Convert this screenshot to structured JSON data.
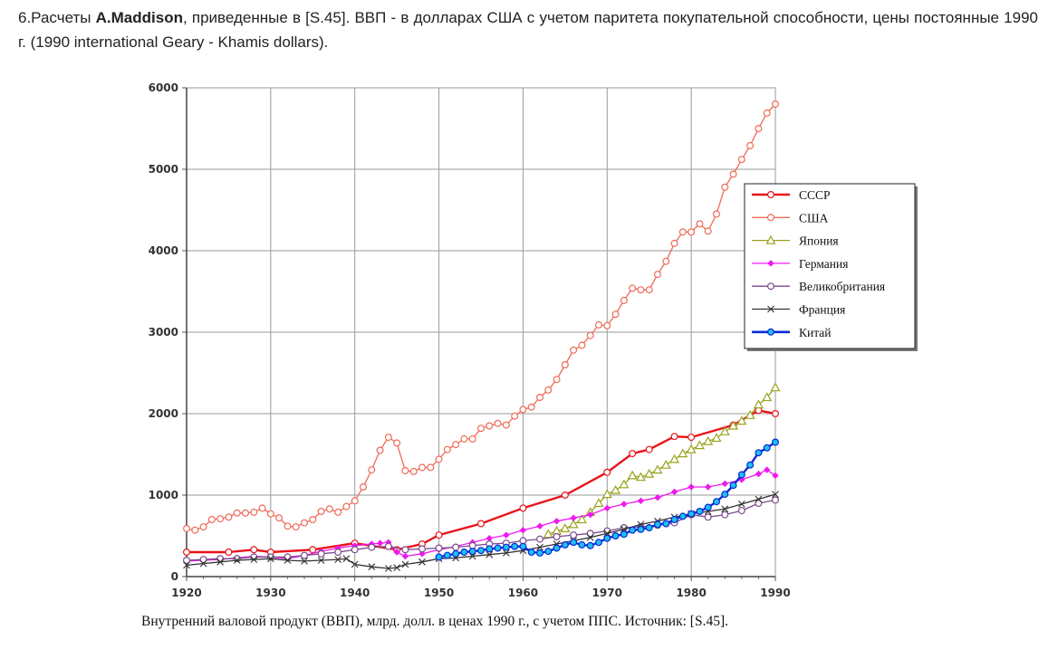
{
  "intro": {
    "prefix": "6.Расчеты ",
    "author": "A.Maddison",
    "rest": ", приведенные в [S.45]. ВВП - в долларах США с учетом паритета покупательной способности, цены постоянные 1990 г. (1990 international Geary - Khamis dollars)."
  },
  "caption": "Внутренний валовой продукт (ВВП), млрд. долл. в ценах 1990 г., с учетом ППС. Источник: [S.45].",
  "chart_data": {
    "type": "line",
    "xlim": [
      1920,
      1990
    ],
    "ylim": [
      0,
      6000
    ],
    "x_ticks": [
      "1920",
      "1930",
      "1940",
      "1950",
      "1960",
      "1970",
      "1980",
      "1990"
    ],
    "y_ticks": [
      "0",
      "1000",
      "2000",
      "3000",
      "4000",
      "5000",
      "6000"
    ],
    "grid": true,
    "legend_position": "right",
    "series": [
      {
        "name": "СССР",
        "color": "#e8141b",
        "marker": "circle",
        "x": [
          1920,
          1925,
          1928,
          1930,
          1935,
          1940,
          1945,
          1948,
          1950,
          1955,
          1960,
          1965,
          1970,
          1973,
          1975,
          1978,
          1980,
          1985,
          1988,
          1990
        ],
        "y": [
          300,
          300,
          330,
          300,
          330,
          410,
          330,
          400,
          510,
          650,
          840,
          1000,
          1280,
          1510,
          1560,
          1720,
          1710,
          1860,
          2040,
          2000
        ]
      },
      {
        "name": "США",
        "color": "#ef6b57",
        "marker": "circle",
        "x": [
          1920,
          1921,
          1922,
          1923,
          1924,
          1925,
          1926,
          1927,
          1928,
          1929,
          1930,
          1931,
          1932,
          1933,
          1934,
          1935,
          1936,
          1937,
          1938,
          1939,
          1940,
          1941,
          1942,
          1943,
          1944,
          1945,
          1946,
          1947,
          1948,
          1949,
          1950,
          1951,
          1952,
          1953,
          1954,
          1955,
          1956,
          1957,
          1958,
          1959,
          1960,
          1961,
          1962,
          1963,
          1964,
          1965,
          1966,
          1967,
          1968,
          1969,
          1970,
          1971,
          1972,
          1973,
          1974,
          1975,
          1976,
          1977,
          1978,
          1979,
          1980,
          1981,
          1982,
          1983,
          1984,
          1985,
          1986,
          1987,
          1988,
          1989,
          1990
        ],
        "y": [
          590,
          570,
          610,
          700,
          710,
          730,
          780,
          780,
          790,
          840,
          770,
          720,
          620,
          610,
          660,
          700,
          800,
          830,
          790,
          860,
          930,
          1100,
          1310,
          1550,
          1710,
          1640,
          1300,
          1290,
          1340,
          1340,
          1440,
          1560,
          1620,
          1690,
          1690,
          1820,
          1850,
          1880,
          1860,
          1970,
          2050,
          2080,
          2200,
          2290,
          2420,
          2600,
          2780,
          2840,
          2960,
          3090,
          3080,
          3220,
          3390,
          3540,
          3520,
          3520,
          3710,
          3870,
          4090,
          4230,
          4230,
          4330,
          4240,
          4450,
          4780,
          4940,
          5120,
          5290,
          5500,
          5690,
          5800
        ]
      },
      {
        "name": "Япония",
        "color": "#9aa31f",
        "marker": "triangle",
        "x": [
          1963,
          1964,
          1965,
          1966,
          1967,
          1968,
          1969,
          1970,
          1971,
          1972,
          1973,
          1974,
          1975,
          1976,
          1977,
          1978,
          1979,
          1980,
          1981,
          1982,
          1983,
          1984,
          1985,
          1986,
          1987,
          1988,
          1989,
          1990
        ],
        "y": [
          520,
          560,
          590,
          640,
          700,
          790,
          900,
          1010,
          1060,
          1130,
          1240,
          1220,
          1260,
          1310,
          1370,
          1440,
          1510,
          1560,
          1610,
          1660,
          1700,
          1780,
          1850,
          1910,
          1980,
          2110,
          2200,
          2320
        ]
      },
      {
        "name": "Германия",
        "color": "#f018f0",
        "marker": "diamond",
        "x": [
          1920,
          1922,
          1924,
          1926,
          1928,
          1930,
          1932,
          1934,
          1936,
          1938,
          1940,
          1942,
          1943,
          1944,
          1945,
          1946,
          1948,
          1950,
          1952,
          1954,
          1956,
          1958,
          1960,
          1962,
          1964,
          1966,
          1968,
          1970,
          1972,
          1974,
          1976,
          1978,
          1980,
          1982,
          1984,
          1986,
          1988,
          1989,
          1990
        ],
        "y": [
          190,
          200,
          210,
          230,
          250,
          240,
          220,
          260,
          310,
          350,
          380,
          400,
          410,
          420,
          300,
          250,
          280,
          330,
          370,
          420,
          470,
          510,
          570,
          620,
          680,
          720,
          760,
          840,
          890,
          930,
          970,
          1040,
          1100,
          1100,
          1140,
          1190,
          1260,
          1310,
          1240
        ]
      },
      {
        "name": "Великобритания",
        "color": "#7a4a8c",
        "marker": "circle",
        "x": [
          1920,
          1922,
          1924,
          1926,
          1928,
          1930,
          1932,
          1934,
          1936,
          1938,
          1940,
          1942,
          1944,
          1946,
          1948,
          1950,
          1952,
          1954,
          1956,
          1958,
          1960,
          1962,
          1964,
          1966,
          1968,
          1970,
          1972,
          1974,
          1976,
          1978,
          1980,
          1982,
          1984,
          1986,
          1988,
          1990
        ],
        "y": [
          200,
          210,
          220,
          220,
          240,
          240,
          240,
          260,
          280,
          300,
          330,
          360,
          370,
          330,
          340,
          350,
          360,
          380,
          400,
          410,
          440,
          460,
          490,
          510,
          530,
          560,
          600,
          610,
          630,
          660,
          760,
          730,
          760,
          810,
          900,
          940
        ]
      },
      {
        "name": "Франция",
        "color": "#333333",
        "marker": "cross",
        "x": [
          1920,
          1922,
          1924,
          1926,
          1928,
          1930,
          1932,
          1934,
          1936,
          1938,
          1939,
          1940,
          1942,
          1944,
          1945,
          1946,
          1948,
          1950,
          1952,
          1954,
          1956,
          1958,
          1960,
          1962,
          1964,
          1966,
          1968,
          1970,
          1972,
          1974,
          1976,
          1978,
          1980,
          1982,
          1984,
          1986,
          1988,
          1990
        ],
        "y": [
          140,
          160,
          180,
          200,
          210,
          220,
          200,
          190,
          200,
          210,
          220,
          150,
          120,
          100,
          110,
          150,
          180,
          220,
          230,
          250,
          270,
          290,
          320,
          360,
          400,
          440,
          480,
          530,
          580,
          640,
          680,
          730,
          770,
          800,
          830,
          890,
          950,
          1010
        ]
      },
      {
        "name": "Китай",
        "color": "#1ec0f0",
        "line_color": "#0a2ad6",
        "marker": "circle",
        "x": [
          1950,
          1951,
          1952,
          1953,
          1954,
          1955,
          1956,
          1957,
          1958,
          1959,
          1960,
          1961,
          1962,
          1963,
          1964,
          1965,
          1966,
          1967,
          1968,
          1969,
          1970,
          1971,
          1972,
          1973,
          1974,
          1975,
          1976,
          1977,
          1978,
          1979,
          1980,
          1981,
          1982,
          1983,
          1984,
          1985,
          1986,
          1987,
          1988,
          1989,
          1990
        ],
        "y": [
          240,
          260,
          280,
          300,
          310,
          320,
          340,
          350,
          360,
          370,
          370,
          300,
          290,
          310,
          350,
          390,
          420,
          390,
          380,
          420,
          470,
          500,
          520,
          570,
          580,
          600,
          640,
          650,
          700,
          740,
          770,
          800,
          850,
          920,
          1010,
          1120,
          1250,
          1370,
          1520,
          1580,
          1650
        ]
      }
    ]
  }
}
